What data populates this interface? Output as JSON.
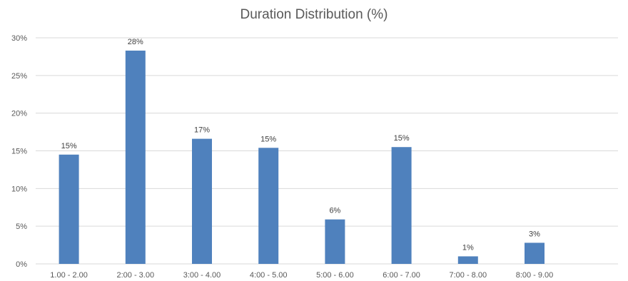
{
  "chart_data": {
    "type": "bar",
    "title": "Duration Distribution (%)",
    "xlabel": "",
    "ylabel": "",
    "categories": [
      "1.00 - 2.00",
      "2:00 - 3.00",
      "3:00 - 4.00",
      "4:00 - 5.00",
      "5:00 - 6.00",
      "6:00 - 7.00",
      "7:00 - 8.00",
      "8:00 - 9.00"
    ],
    "values": [
      14.5,
      28.3,
      16.6,
      15.4,
      5.9,
      15.5,
      1.0,
      2.8
    ],
    "data_labels": [
      "15%",
      "28%",
      "17%",
      "15%",
      "6%",
      "15%",
      "1%",
      "3%"
    ],
    "ylim": [
      0,
      30
    ],
    "yticks": [
      0,
      5,
      10,
      15,
      20,
      25,
      30
    ],
    "ytick_labels": [
      "0%",
      "5%",
      "10%",
      "15%",
      "20%",
      "25%",
      "30%"
    ],
    "grid": true,
    "legend": "none",
    "bar_color": "#4F81BD",
    "grid_color": "#D9D9D9"
  }
}
